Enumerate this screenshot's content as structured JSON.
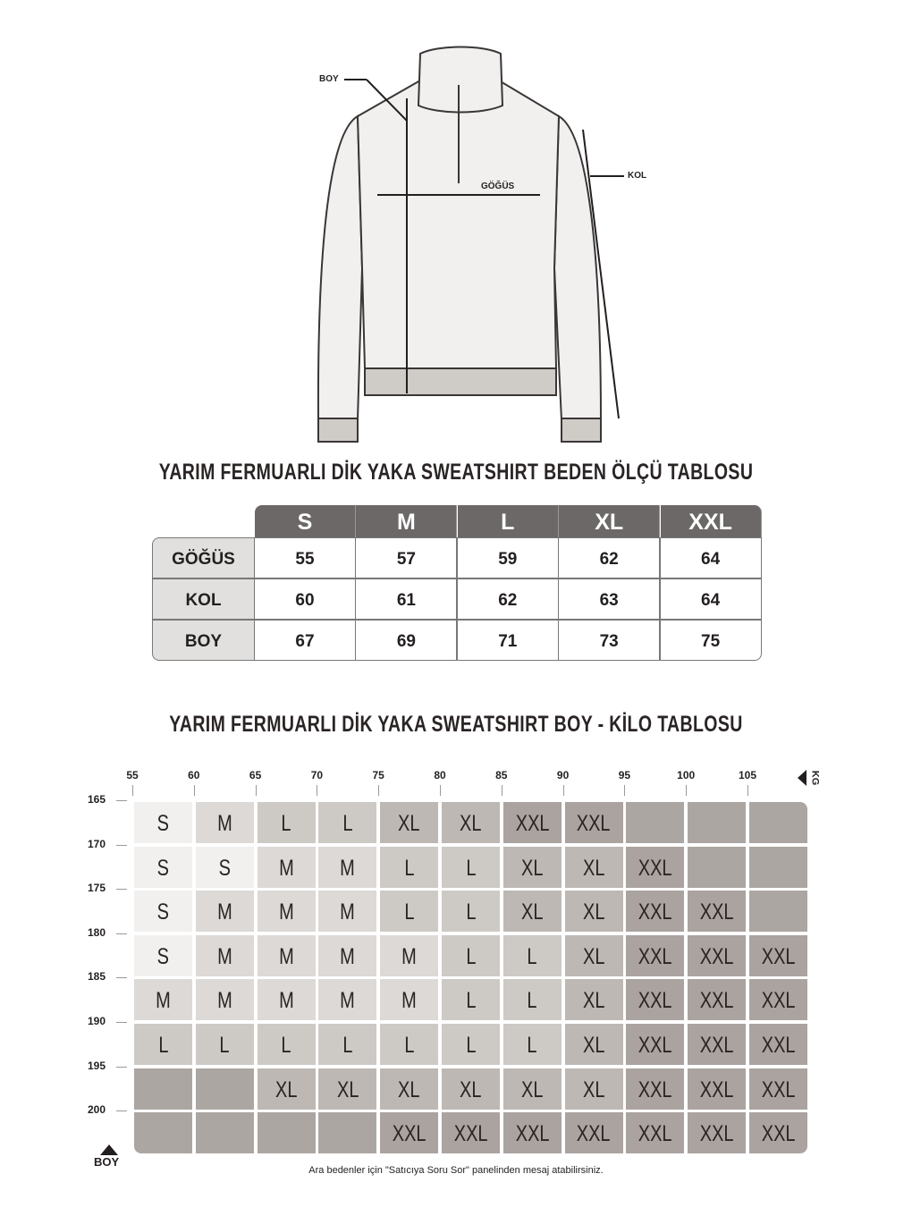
{
  "illustration": {
    "labels": {
      "boy": "BOY",
      "gogus": "GÖĞÜS",
      "kol": "KOL"
    }
  },
  "measure_table": {
    "title": "YARIM FERMUARLI DİK YAKA SWEATSHIRT BEDEN ÖLÇÜ TABLOSU",
    "sizes": [
      "S",
      "M",
      "L",
      "XL",
      "XXL"
    ],
    "rows": [
      {
        "label": "GÖĞÜS",
        "values": [
          "55",
          "57",
          "59",
          "62",
          "64"
        ]
      },
      {
        "label": "KOL",
        "values": [
          "60",
          "61",
          "62",
          "63",
          "64"
        ]
      },
      {
        "label": "BOY",
        "values": [
          "67",
          "69",
          "71",
          "73",
          "75"
        ]
      }
    ]
  },
  "weight_table": {
    "title": "YARIM FERMUARLI DİK YAKA SWEATSHIRT BOY - KİLO TABLOSU",
    "kg_label": "KG",
    "boy_label": "BOY",
    "kg_ticks": [
      "55",
      "60",
      "65",
      "70",
      "75",
      "80",
      "85",
      "90",
      "95",
      "100",
      "105"
    ],
    "height_ticks": [
      "165",
      "170",
      "175",
      "180",
      "185",
      "190",
      "195",
      "200"
    ],
    "rows": [
      [
        "S",
        "M",
        "L",
        "L",
        "XL",
        "XL",
        "XXL",
        "XXL",
        "",
        "",
        ""
      ],
      [
        "S",
        "S",
        "M",
        "M",
        "L",
        "L",
        "XL",
        "XL",
        "XXL",
        "",
        ""
      ],
      [
        "S",
        "M",
        "M",
        "M",
        "L",
        "L",
        "XL",
        "XL",
        "XXL",
        "XXL",
        ""
      ],
      [
        "S",
        "M",
        "M",
        "M",
        "M",
        "L",
        "L",
        "XL",
        "XXL",
        "XXL",
        "XXL"
      ],
      [
        "M",
        "M",
        "M",
        "M",
        "M",
        "L",
        "L",
        "XL",
        "XXL",
        "XXL",
        "XXL"
      ],
      [
        "L",
        "L",
        "L",
        "L",
        "L",
        "L",
        "L",
        "XL",
        "XXL",
        "XXL",
        "XXL"
      ],
      [
        "",
        "",
        "XL",
        "XL",
        "XL",
        "XL",
        "XL",
        "XL",
        "XXL",
        "XXL",
        "XXL"
      ],
      [
        "",
        "",
        "",
        "",
        "XXL",
        "XXL",
        "XXL",
        "XXL",
        "XXL",
        "XXL",
        "XXL"
      ]
    ],
    "size_colors": {
      "S": "#f1f0ee",
      "M": "#dcd9d6",
      "L": "#cdc9c5",
      "XL": "#bdb8b4",
      "XXL": "#aaa39f",
      "empty": "#aca6a2"
    },
    "footnote": "Ara bedenler için \"Satıcıya Soru Sor\" panelinden mesaj atabilirsiniz."
  }
}
